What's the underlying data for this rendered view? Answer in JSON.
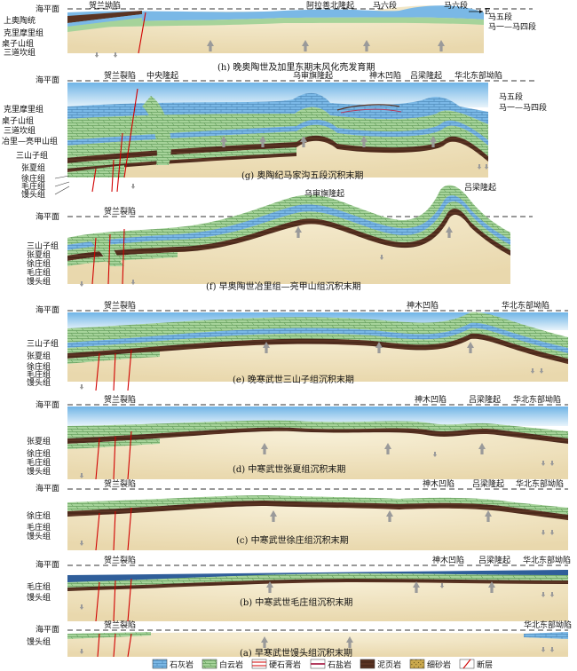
{
  "panels": [
    {
      "caption": "(h) 晚奥陶世及加里东期末风化壳发育期",
      "sea_level": "海平面",
      "top_labels": [
        "贺兰坳陷",
        "阿拉善北隆起",
        "马六段",
        "马六段"
      ],
      "arrow_label": "E",
      "left_units": [
        "上奥陶统",
        "克里摩里组",
        "桌子山组",
        "三道坎组"
      ],
      "right_units": [
        "马五段",
        "马一—马四段"
      ]
    },
    {
      "caption": "(g) 奥陶纪马家沟五段沉积末期",
      "sea_level": "海平面",
      "top_labels": [
        "贺兰裂陷",
        "中央隆起",
        "乌审旗隆起",
        "神木凹陷",
        "吕梁隆起",
        "华北东部坳陷"
      ],
      "left_units": [
        "克里摩里组",
        "桌子山组",
        "三道坎组",
        "冶里—亮甲山组",
        "三山子组",
        "张夏组",
        "徐庄组",
        "毛庄组",
        "馒头组"
      ],
      "right_units": [
        "马五段",
        "马一—马四段"
      ]
    },
    {
      "caption": "(f) 早奥陶世冶里组—亮甲山组沉积末期",
      "sea_level": "海平面",
      "top_labels": [
        "贺兰裂陷",
        "乌审旗隆起",
        "吕梁隆起"
      ],
      "left_units": [
        "三山子组",
        "张夏组",
        "徐庄组",
        "毛庄组",
        "馒头组"
      ]
    },
    {
      "caption": "(e) 晚寒武世三山子组沉积末期",
      "sea_level": "海平面",
      "top_labels": [
        "贺兰裂陷",
        "神木凹陷",
        "华北东部坳陷"
      ],
      "left_units": [
        "三山子组",
        "张夏组",
        "徐庄组",
        "毛庄组",
        "馒头组"
      ]
    },
    {
      "caption": "(d) 中寒武世张夏组沉积末期",
      "sea_level": "海平面",
      "top_labels": [
        "贺兰裂陷",
        "神木凹陷",
        "吕梁隆起",
        "华北东部坳陷"
      ],
      "left_units": [
        "张夏组",
        "徐庄组",
        "毛庄组",
        "馒头组"
      ]
    },
    {
      "caption": "(c) 中寒武世徐庄组沉积末期",
      "sea_level": "海平面",
      "top_labels": [
        "贺兰裂陷",
        "神木凹陷",
        "吕梁隆起",
        "华北东部坳陷"
      ],
      "left_units": [
        "徐庄组",
        "毛庄组",
        "馒头组"
      ]
    },
    {
      "caption": "(b) 中寒武世毛庄组沉积末期",
      "sea_level": "海平面",
      "top_labels": [
        "贺兰裂陷",
        "神木凹陷",
        "吕梁隆起",
        "华北东部坳陷"
      ],
      "left_units": [
        "毛庄组",
        "馒头组"
      ]
    },
    {
      "caption": "(a) 早寒武世馒头组沉积末期",
      "sea_level": "海平面",
      "top_labels": [
        "贺兰裂陷",
        "华北东部坳陷"
      ],
      "left_units": [
        "馒头组"
      ]
    }
  ],
  "legend": [
    {
      "label": "石灰岩",
      "pattern": "limestone"
    },
    {
      "label": "白云岩",
      "pattern": "dolomite"
    },
    {
      "label": "硬石膏岩",
      "pattern": "anhydrite"
    },
    {
      "label": "石盐岩",
      "pattern": "halite"
    },
    {
      "label": "泥页岩",
      "pattern": "shale"
    },
    {
      "label": "细砂岩",
      "pattern": "sandstone"
    },
    {
      "label": "断层",
      "pattern": "fault"
    }
  ],
  "colors": {
    "sea": "#b9dcf3",
    "limestone": "#7ab8e6",
    "dolomite": "#a6d39a",
    "shale": "#5a3322",
    "sandstone": "#caa84c",
    "basement": "#efe2bd",
    "fault": "#d10000",
    "arrow": "#9a9a9a"
  }
}
